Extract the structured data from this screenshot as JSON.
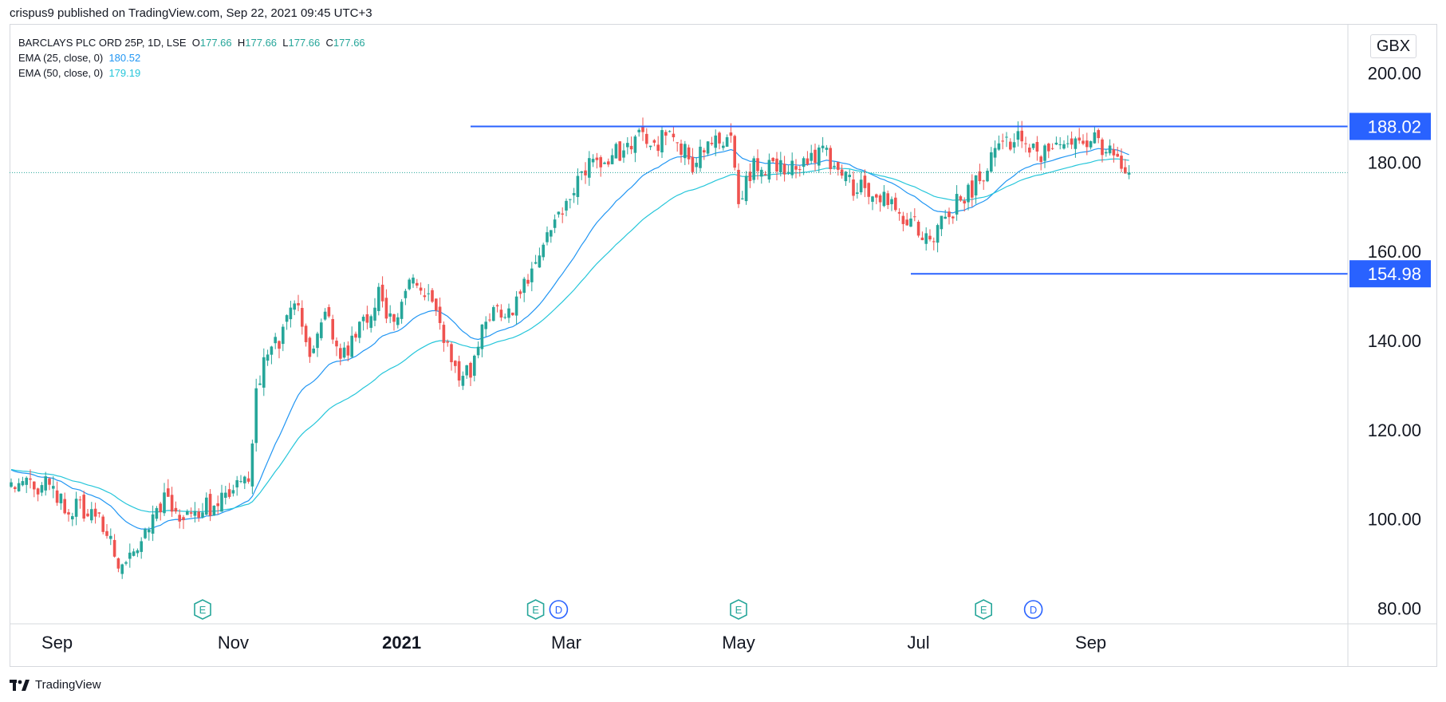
{
  "header": {
    "published": "crispus9 published on TradingView.com, Sep 22, 2021 09:45 UTC+3"
  },
  "legend": {
    "symbol": "BARCLAYS PLC ORD 25P, 1D, LSE",
    "o_label": "O",
    "o_value": "177.66",
    "h_label": "H",
    "h_value": "177.66",
    "l_label": "L",
    "l_value": "177.66",
    "c_label": "C",
    "c_value": "177.66",
    "ema1_label": "EMA (25, close, 0)",
    "ema1_value": "180.52",
    "ema2_label": "EMA (50, close, 0)",
    "ema2_value": "179.19"
  },
  "footer": {
    "brand": "TradingView"
  },
  "colors": {
    "up": "#26a69a",
    "down": "#ef5350",
    "ema25": "#2196f3",
    "ema50": "#26c6da",
    "level": "#2962ff",
    "grid": "#e0e3eb",
    "earnings": "#26a69a",
    "dividend": "#2962ff"
  },
  "chart_data": {
    "type": "candlestick",
    "title": "BARCLAYS PLC ORD 25P, 1D, LSE",
    "currency": "GBX",
    "ylim": [
      76.5,
      211
    ],
    "yticks": [
      "80.00",
      "100.00",
      "120.00",
      "140.00",
      "160.00",
      "180.00",
      "200.00"
    ],
    "xticks": [
      {
        "label": "Sep",
        "bold": false
      },
      {
        "label": "Nov",
        "bold": false
      },
      {
        "label": "2021",
        "bold": true
      },
      {
        "label": "Mar",
        "bold": false
      },
      {
        "label": "May",
        "bold": false
      },
      {
        "label": "Jul",
        "bold": false
      },
      {
        "label": "Sep",
        "bold": false
      }
    ],
    "last_price": 177.66,
    "levels": [
      {
        "label": "188.02",
        "value": 188.02,
        "from_day": 120
      },
      {
        "label": "154.98",
        "value": 154.98,
        "from_day": 235
      }
    ],
    "events": [
      {
        "type": "E",
        "day": 50
      },
      {
        "type": "E",
        "day": 137
      },
      {
        "type": "D",
        "day": 143
      },
      {
        "type": "E",
        "day": 190
      },
      {
        "type": "E",
        "day": 254
      },
      {
        "type": "D",
        "day": 267
      }
    ],
    "close_path": [
      [
        0,
        106.5
      ],
      [
        6,
        107.5
      ],
      [
        10,
        108.5
      ],
      [
        14,
        103
      ],
      [
        20,
        102
      ],
      [
        24,
        98
      ],
      [
        28,
        90.5
      ],
      [
        32,
        93
      ],
      [
        35,
        97
      ],
      [
        38,
        101
      ],
      [
        40,
        104
      ],
      [
        44,
        101
      ],
      [
        50,
        102.5
      ],
      [
        54,
        103
      ],
      [
        58,
        108
      ],
      [
        62,
        108
      ],
      [
        64,
        128
      ],
      [
        66,
        136
      ],
      [
        70,
        140
      ],
      [
        74,
        150
      ],
      [
        78,
        138
      ],
      [
        82,
        146
      ],
      [
        86,
        135
      ],
      [
        90,
        142
      ],
      [
        96,
        150
      ],
      [
        100,
        143
      ],
      [
        104,
        153
      ],
      [
        110,
        150
      ],
      [
        116,
        133
      ],
      [
        120,
        133
      ],
      [
        124,
        145
      ],
      [
        130,
        146
      ],
      [
        134,
        153
      ],
      [
        140,
        163
      ],
      [
        146,
        173
      ],
      [
        152,
        180
      ],
      [
        156,
        181
      ],
      [
        160,
        183
      ],
      [
        164,
        187
      ],
      [
        168,
        183
      ],
      [
        172,
        187
      ],
      [
        178,
        180
      ],
      [
        184,
        184
      ],
      [
        188,
        187
      ],
      [
        190,
        172
      ],
      [
        194,
        180
      ],
      [
        200,
        178
      ],
      [
        206,
        180
      ],
      [
        212,
        182
      ],
      [
        216,
        178
      ],
      [
        220,
        174
      ],
      [
        226,
        174
      ],
      [
        230,
        170
      ],
      [
        236,
        166
      ],
      [
        240,
        162
      ],
      [
        244,
        167
      ],
      [
        248,
        172
      ],
      [
        252,
        175
      ],
      [
        258,
        183
      ],
      [
        264,
        186
      ],
      [
        268,
        181
      ],
      [
        272,
        184
      ],
      [
        276,
        186
      ],
      [
        280,
        186
      ],
      [
        286,
        183
      ],
      [
        290,
        180
      ],
      [
        292,
        174
      ]
    ]
  }
}
